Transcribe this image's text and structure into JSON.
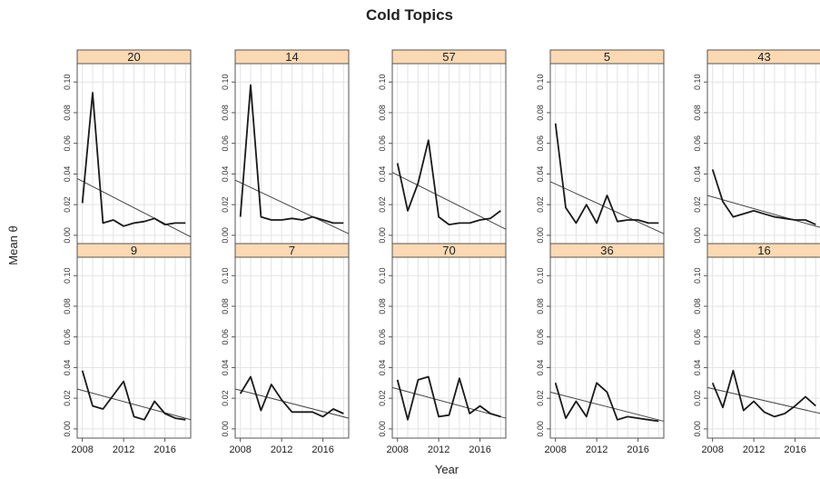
{
  "chart_data": {
    "type": "line",
    "title": "Cold Topics",
    "xlabel": "Year",
    "ylabel": "Mean θ",
    "xlim": [
      2007.5,
      2018.5
    ],
    "ylim": [
      -0.006,
      0.112
    ],
    "yticks": [
      "0.00",
      "0.02",
      "0.04",
      "0.06",
      "0.08",
      "0.10"
    ],
    "xticks": [
      "2008",
      "2012",
      "2016"
    ],
    "grid": true,
    "layout": "2 rows x 5 columns",
    "panels": [
      {
        "topic": "20",
        "x": [
          2008,
          2009,
          2010,
          2011,
          2012,
          2013,
          2014,
          2015,
          2016,
          2017,
          2018
        ],
        "values": [
          0.021,
          0.093,
          0.008,
          0.01,
          0.006,
          0.008,
          0.009,
          0.011,
          0.007,
          0.008,
          0.008
        ],
        "trend": [
          0.037,
          -0.001
        ]
      },
      {
        "topic": "14",
        "x": [
          2008,
          2009,
          2010,
          2011,
          2012,
          2013,
          2014,
          2015,
          2016,
          2017,
          2018
        ],
        "values": [
          0.012,
          0.098,
          0.012,
          0.01,
          0.01,
          0.011,
          0.01,
          0.012,
          0.01,
          0.008,
          0.008
        ],
        "trend": [
          0.036,
          0.001
        ]
      },
      {
        "topic": "57",
        "x": [
          2008,
          2009,
          2010,
          2011,
          2012,
          2013,
          2014,
          2015,
          2016,
          2017,
          2018
        ],
        "values": [
          0.047,
          0.016,
          0.034,
          0.062,
          0.012,
          0.007,
          0.008,
          0.008,
          0.01,
          0.011,
          0.016
        ],
        "trend": [
          0.041,
          0.004
        ]
      },
      {
        "topic": "5",
        "x": [
          2008,
          2009,
          2010,
          2011,
          2012,
          2013,
          2014,
          2015,
          2016,
          2017,
          2018
        ],
        "values": [
          0.073,
          0.018,
          0.008,
          0.02,
          0.008,
          0.026,
          0.009,
          0.01,
          0.01,
          0.008,
          0.008
        ],
        "trend": [
          0.035,
          0.001
        ]
      },
      {
        "topic": "43",
        "x": [
          2008,
          2009,
          2010,
          2011,
          2012,
          2013,
          2014,
          2015,
          2016,
          2017,
          2018
        ],
        "values": [
          0.043,
          0.022,
          0.012,
          0.014,
          0.016,
          0.014,
          0.012,
          0.011,
          0.01,
          0.01,
          0.007
        ],
        "trend": [
          0.026,
          0.005
        ]
      },
      {
        "topic": "9",
        "x": [
          2008,
          2009,
          2010,
          2011,
          2012,
          2013,
          2014,
          2015,
          2016,
          2017,
          2018
        ],
        "values": [
          0.038,
          0.015,
          0.013,
          0.022,
          0.031,
          0.008,
          0.006,
          0.018,
          0.01,
          0.007,
          0.006
        ],
        "trend": [
          0.026,
          0.006
        ]
      },
      {
        "topic": "7",
        "x": [
          2008,
          2009,
          2010,
          2011,
          2012,
          2013,
          2014,
          2015,
          2016,
          2017,
          2018
        ],
        "values": [
          0.023,
          0.034,
          0.012,
          0.029,
          0.019,
          0.011,
          0.011,
          0.011,
          0.008,
          0.013,
          0.01
        ],
        "trend": [
          0.026,
          0.007
        ]
      },
      {
        "topic": "70",
        "x": [
          2008,
          2009,
          2010,
          2011,
          2012,
          2013,
          2014,
          2015,
          2016,
          2017,
          2018
        ],
        "values": [
          0.032,
          0.006,
          0.032,
          0.034,
          0.008,
          0.009,
          0.033,
          0.01,
          0.015,
          0.01,
          0.008
        ],
        "trend": [
          0.027,
          0.007
        ]
      },
      {
        "topic": "36",
        "x": [
          2008,
          2009,
          2010,
          2011,
          2012,
          2013,
          2014,
          2015,
          2016,
          2017,
          2018
        ],
        "values": [
          0.03,
          0.007,
          0.018,
          0.008,
          0.03,
          0.024,
          0.006,
          0.008,
          0.007,
          0.006,
          0.005
        ],
        "trend": [
          0.024,
          0.005
        ]
      },
      {
        "topic": "16",
        "x": [
          2008,
          2009,
          2010,
          2011,
          2012,
          2013,
          2014,
          2015,
          2016,
          2017,
          2018
        ],
        "values": [
          0.03,
          0.014,
          0.038,
          0.012,
          0.018,
          0.011,
          0.008,
          0.01,
          0.015,
          0.021,
          0.015
        ],
        "trend": [
          0.027,
          0.01
        ]
      }
    ],
    "colors": {
      "strip": "#fbd9b2",
      "line": "#1a1a1a",
      "trend": "#444444",
      "grid": "#e3e3e3",
      "frame": "#555555"
    }
  }
}
